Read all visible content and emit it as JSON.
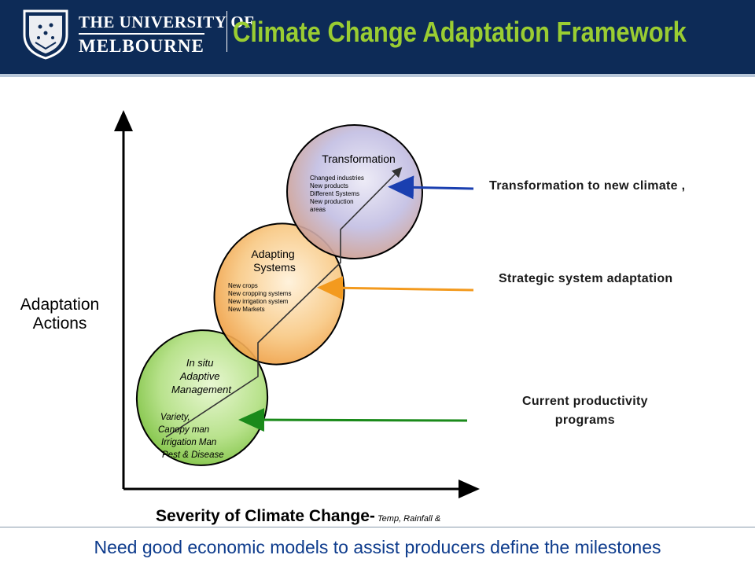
{
  "header": {
    "university_line1": "THE UNIVERSITY OF",
    "university_line2": "MELBOURNE",
    "title": "Climate Change Adaptation Framework",
    "brand_color": "#0d2b57",
    "title_color": "#9acd32"
  },
  "axes": {
    "y_label": "Adaptation\nActions",
    "x_label": "Severity of Climate Change-",
    "x_label_suffix": " Temp, Rainfall &"
  },
  "stages": [
    {
      "title": "In situ\nAdaptive\nManagement",
      "items": [
        "Variety,",
        "Canopy man",
        "Irrigation Man",
        "Pest & Disease"
      ],
      "fill": "#90d060"
    },
    {
      "title": "Adapting\nSystems",
      "items": [
        "New crops",
        "New cropping systems",
        "New irrigation system",
        "New Markets"
      ],
      "fill": "#f3a64a"
    },
    {
      "title": "Transformation",
      "items": [
        "Changed  industries",
        "New products",
        "Different Systems",
        "New production",
        "areas"
      ],
      "fill": "#9aa3d8"
    }
  ],
  "annotations": [
    {
      "text": "Transformation to  new climate ,",
      "arrow_color": "#1a3fb0"
    },
    {
      "text": "Strategic system adaptation",
      "arrow_color": "#f39a1e"
    },
    {
      "text": "Current productivity\nprograms",
      "arrow_color": "#1a8a1a"
    }
  ],
  "footer": {
    "text": "Need good economic models to assist producers define the milestones",
    "color": "#0d3b8c"
  }
}
